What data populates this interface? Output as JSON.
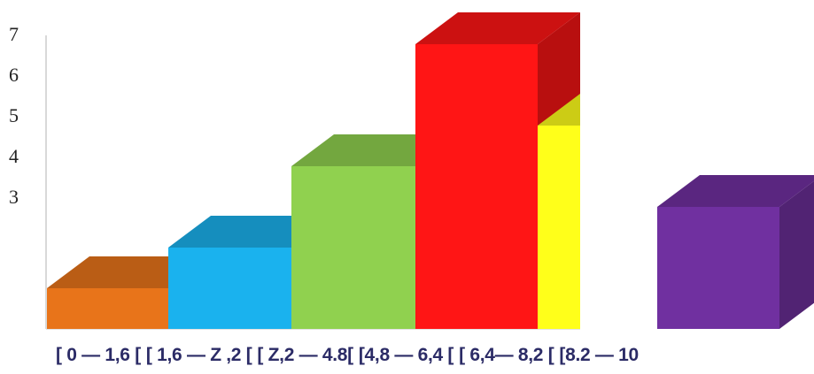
{
  "chart_data": {
    "type": "bar",
    "style": "3d",
    "categories": [
      "[ 0 — 1,6 [",
      "[ 1,6 — Z ,2 [",
      "[ Z,2 — 4.8[",
      "[4,8 — 6,4 [",
      "[ 6,4— 8,2 [",
      "[8.2 — 10"
    ],
    "values": [
      1,
      2,
      4,
      7,
      5,
      3
    ],
    "colors": [
      "#e8741a",
      "#1ab2ee",
      "#90d14f",
      "#ff1515",
      "#ffff1a",
      "#7030a0"
    ],
    "y_ticks": [
      "3",
      "4",
      "5",
      "6",
      "7"
    ],
    "ylim": [
      0,
      7
    ],
    "grid": false,
    "title": "",
    "xlabel": "",
    "ylabel": ""
  }
}
